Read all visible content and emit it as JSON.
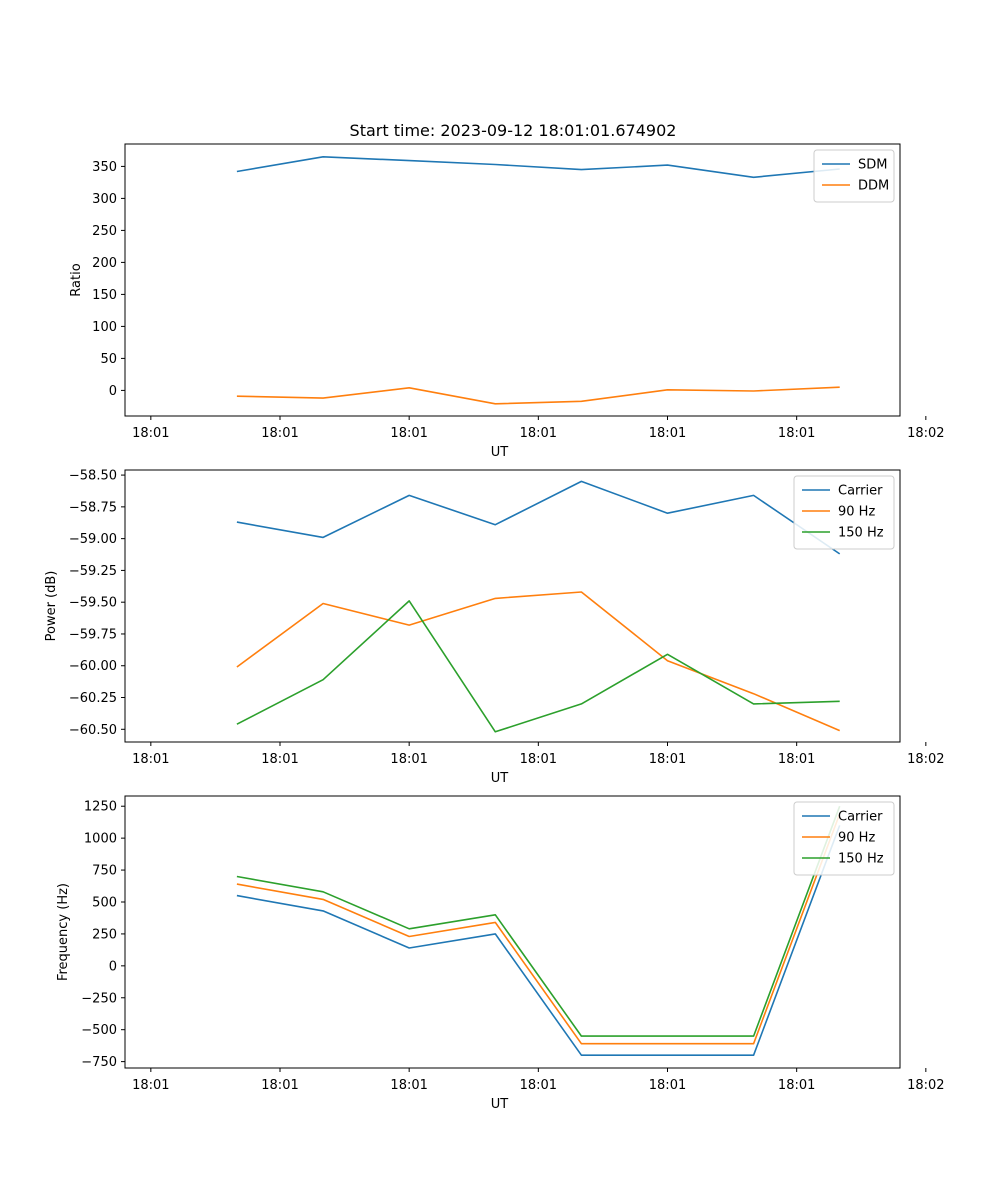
{
  "title": "Start time: 2023-09-12 18:01:01.674902",
  "chart_data": [
    {
      "type": "line",
      "name": "ratio",
      "xlabel": "UT",
      "ylabel": "Ratio",
      "x": [
        1.5,
        2.5,
        3.5,
        4.5,
        5.5,
        6.5,
        7.5,
        8.5
      ],
      "xlim": [
        0.2,
        9.2
      ],
      "xticks": [
        0.5,
        2,
        3.5,
        5,
        6.5,
        8,
        9.5
      ],
      "xtick_labels": [
        "18:01",
        "18:01",
        "18:01",
        "18:01",
        "18:01",
        "18:01",
        "18:02"
      ],
      "ylim": [
        -40,
        385
      ],
      "yticks": [
        0,
        50,
        100,
        150,
        200,
        250,
        300,
        350
      ],
      "ytick_labels": [
        "0",
        "50",
        "100",
        "150",
        "200",
        "250",
        "300",
        "350"
      ],
      "legend": "top-right",
      "series": [
        {
          "name": "SDM",
          "color": "#1f77b4",
          "values": [
            342,
            365,
            359,
            353,
            345,
            352,
            333,
            346
          ]
        },
        {
          "name": "DDM",
          "color": "#ff7f0e",
          "values": [
            -9,
            -12,
            4,
            -21,
            -17,
            1,
            -1,
            5
          ]
        }
      ]
    },
    {
      "type": "line",
      "name": "power",
      "xlabel": "UT",
      "ylabel": "Power (dB)",
      "x": [
        1.5,
        2.5,
        3.5,
        4.5,
        5.5,
        6.5,
        7.5,
        8.5
      ],
      "xlim": [
        0.2,
        9.2
      ],
      "xticks": [
        0.5,
        2,
        3.5,
        5,
        6.5,
        8,
        9.5
      ],
      "xtick_labels": [
        "18:01",
        "18:01",
        "18:01",
        "18:01",
        "18:01",
        "18:01",
        "18:02"
      ],
      "ylim": [
        -60.6,
        -58.46
      ],
      "yticks": [
        -60.5,
        -60.25,
        -60.0,
        -59.75,
        -59.5,
        -59.25,
        -59.0,
        -58.75,
        -58.5
      ],
      "ytick_labels": [
        "−60.50",
        "−60.25",
        "−60.00",
        "−59.75",
        "−59.50",
        "−59.25",
        "−59.00",
        "−58.75",
        "−58.50"
      ],
      "legend": "top-right",
      "series": [
        {
          "name": "Carrier",
          "color": "#1f77b4",
          "values": [
            -58.87,
            -58.99,
            -58.66,
            -58.89,
            -58.55,
            -58.8,
            -58.66,
            -59.12
          ]
        },
        {
          "name": "90 Hz",
          "color": "#ff7f0e",
          "values": [
            -60.01,
            -59.51,
            -59.68,
            -59.47,
            -59.42,
            -59.96,
            -60.22,
            -60.51
          ]
        },
        {
          "name": "150 Hz",
          "color": "#2ca02c",
          "values": [
            -60.46,
            -60.11,
            -59.49,
            -60.52,
            -60.3,
            -59.91,
            -60.3,
            -60.28
          ]
        }
      ]
    },
    {
      "type": "line",
      "name": "frequency",
      "xlabel": "UT",
      "ylabel": "Frequency (Hz)",
      "x": [
        1.5,
        2.5,
        3.5,
        4.5,
        5.5,
        6.5,
        7.5,
        8.5
      ],
      "xlim": [
        0.2,
        9.2
      ],
      "xticks": [
        0.5,
        2,
        3.5,
        5,
        6.5,
        8,
        9.5
      ],
      "xtick_labels": [
        "18:01",
        "18:01",
        "18:01",
        "18:01",
        "18:01",
        "18:01",
        "18:02"
      ],
      "ylim": [
        -800,
        1330
      ],
      "yticks": [
        -750,
        -500,
        -250,
        0,
        250,
        500,
        750,
        1000,
        1250
      ],
      "ytick_labels": [
        "−750",
        "−500",
        "−250",
        "0",
        "250",
        "500",
        "750",
        "1000",
        "1250"
      ],
      "legend": "top-right",
      "series": [
        {
          "name": "Carrier",
          "color": "#1f77b4",
          "values": [
            550,
            430,
            140,
            250,
            -700,
            -700,
            -700,
            1100
          ]
        },
        {
          "name": "90 Hz",
          "color": "#ff7f0e",
          "values": [
            640,
            520,
            230,
            340,
            -610,
            -610,
            -610,
            1190
          ]
        },
        {
          "name": "150 Hz",
          "color": "#2ca02c",
          "values": [
            700,
            580,
            290,
            400,
            -550,
            -550,
            -550,
            1250
          ]
        }
      ]
    }
  ]
}
